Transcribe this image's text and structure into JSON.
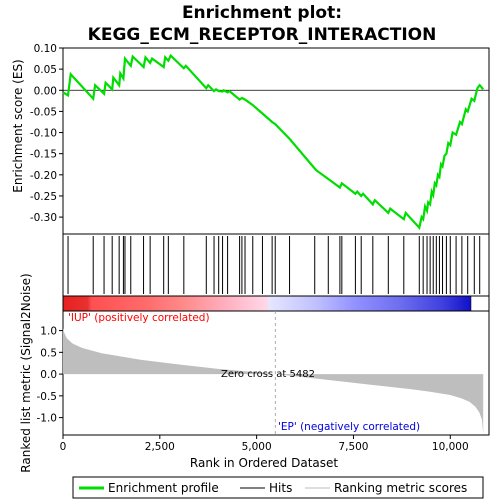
{
  "chart_data": {
    "title_line1": "Enrichment plot:",
    "title_line2": "KEGG_ECM_RECEPTOR_INTERACTION",
    "type": "line",
    "es_panel": {
      "ylabel": "Enrichment score (ES)",
      "ylim": [
        -0.34,
        0.1
      ],
      "yticks": [
        0.1,
        0.05,
        0.0,
        -0.05,
        -0.1,
        -0.15,
        -0.2,
        -0.25,
        -0.3
      ],
      "ytick_labels": [
        "0.10",
        "0.05",
        "0.00",
        "-0.05",
        "-0.10",
        "-0.15",
        "-0.20",
        "-0.25",
        "-0.30"
      ],
      "series_name": "Enrichment profile",
      "series_color": "#00dd00",
      "x": [
        0,
        130,
        200,
        780,
        830,
        1060,
        1100,
        1270,
        1300,
        1450,
        1480,
        1560,
        1600,
        1750,
        1800,
        2080,
        2130,
        2250,
        2300,
        2600,
        2640,
        2720,
        2780,
        3120,
        3170,
        3700,
        3750,
        3900,
        3950,
        4020,
        4120,
        4150,
        4250,
        4300,
        4560,
        4620,
        4700,
        4900,
        5150,
        5400,
        5480,
        5850,
        6500,
        6550,
        6850,
        7150,
        7200,
        7550,
        7600,
        7700,
        7750,
        8000,
        8050,
        8400,
        8450,
        8800,
        8850,
        9200,
        9260,
        9300,
        9350,
        9400,
        9430,
        9480,
        9520,
        9560,
        9600,
        9640,
        9680,
        9720,
        9760,
        9800,
        9850,
        9900,
        9950,
        10000,
        10060,
        10150,
        10250,
        10300,
        10400,
        10450,
        10550,
        10620,
        10700,
        10760,
        10800,
        10850
      ],
      "y": [
        -0.005,
        -0.012,
        0.038,
        -0.02,
        0.012,
        -0.008,
        0.018,
        0.002,
        0.03,
        0.012,
        0.04,
        0.028,
        0.075,
        0.058,
        0.08,
        0.055,
        0.078,
        0.065,
        0.075,
        0.055,
        0.078,
        0.07,
        0.082,
        0.052,
        0.058,
        0.005,
        0.012,
        -0.002,
        0.002,
        -0.002,
        -0.003,
        0.0,
        -0.005,
        -0.002,
        -0.022,
        -0.018,
        -0.022,
        -0.035,
        -0.055,
        -0.075,
        -0.08,
        -0.115,
        -0.185,
        -0.19,
        -0.21,
        -0.23,
        -0.22,
        -0.245,
        -0.24,
        -0.25,
        -0.245,
        -0.27,
        -0.26,
        -0.29,
        -0.28,
        -0.305,
        -0.29,
        -0.325,
        -0.3,
        -0.305,
        -0.275,
        -0.285,
        -0.265,
        -0.27,
        -0.24,
        -0.248,
        -0.22,
        -0.225,
        -0.2,
        -0.205,
        -0.175,
        -0.18,
        -0.155,
        -0.15,
        -0.125,
        -0.13,
        -0.1,
        -0.105,
        -0.075,
        -0.08,
        -0.045,
        -0.05,
        -0.02,
        -0.025,
        0.005,
        0.012,
        0.008,
        0.002
      ]
    },
    "hits_panel": {
      "positions": [
        130,
        780,
        1060,
        1270,
        1450,
        1560,
        1600,
        1750,
        2080,
        2250,
        2600,
        2720,
        3120,
        3700,
        3900,
        4020,
        4120,
        4250,
        4560,
        4620,
        4700,
        4900,
        5150,
        5400,
        5480,
        5850,
        6500,
        6850,
        7150,
        7200,
        7550,
        7700,
        8000,
        8400,
        8800,
        9200,
        9300,
        9400,
        9480,
        9560,
        9640,
        9720,
        9800,
        9900,
        10000,
        10150,
        10300,
        10450,
        10620,
        10760
      ],
      "hit_color": "#000000"
    },
    "ranked_panel": {
      "ylabel_line1": "Ranked list metric (Signal2Noise)",
      "ylim": [
        -1.4,
        1.45
      ],
      "yticks": [
        1.0,
        0.5,
        0.0,
        -0.5,
        -1.0
      ],
      "ytick_labels": [
        "1.0",
        "0.5",
        "0.0",
        "-0.5",
        "-1.0"
      ],
      "x": [
        0,
        30,
        100,
        250,
        500,
        1000,
        2000,
        3000,
        4000,
        5000,
        5482,
        6000,
        7000,
        8000,
        9000,
        9500,
        10000,
        10300,
        10500,
        10650,
        10750,
        10820,
        10850
      ],
      "y": [
        1.05,
        0.95,
        0.82,
        0.7,
        0.6,
        0.48,
        0.33,
        0.22,
        0.12,
        0.04,
        0.0,
        -0.05,
        -0.15,
        -0.25,
        -0.35,
        -0.41,
        -0.48,
        -0.56,
        -0.64,
        -0.75,
        -0.88,
        -1.05,
        -1.38
      ],
      "fill_color": "#bebebe",
      "zero_cross_label": "Zero cross at 5482",
      "zero_cross_x": 5482,
      "pos_label": "'IUP' (positively correlated)",
      "pos_color": "#ff0000",
      "neg_label": "'EP' (negatively correlated)",
      "neg_color": "#0000dd"
    },
    "xlabel": "Rank in Ordered Dataset",
    "xlim": [
      0,
      11000
    ],
    "xticks": [
      0,
      2500,
      5000,
      7500,
      10000
    ],
    "xtick_labels": [
      "0",
      "2,500",
      "5,000",
      "7,500",
      "10,000"
    ],
    "n_genes": 10850
  },
  "legend": {
    "items": [
      {
        "label": "Enrichment profile",
        "color": "#00dd00",
        "kind": "thick-line"
      },
      {
        "label": "Hits",
        "color": "#000000",
        "kind": "thin-line"
      },
      {
        "label": "Ranking metric scores",
        "color": "#bebebe",
        "kind": "thin-line"
      }
    ]
  }
}
